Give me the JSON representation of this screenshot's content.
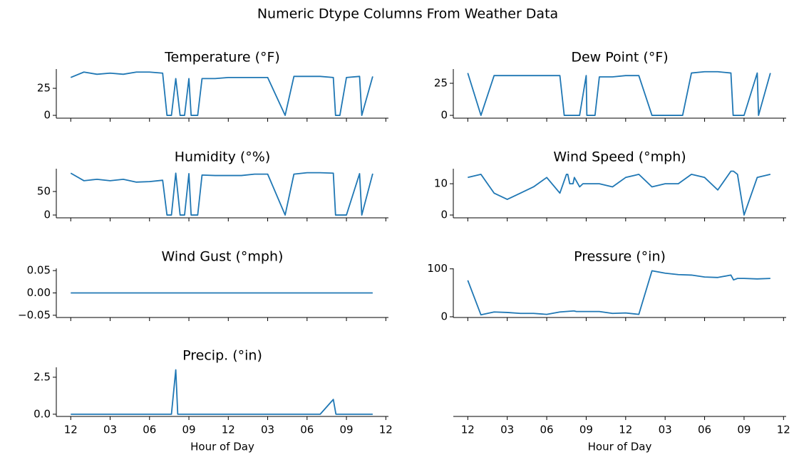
{
  "title": "Numeric Dtype Columns From Weather Data",
  "chart_data": [
    {
      "type": "line",
      "title": "Temperature (°F)",
      "color": "#1f77b4",
      "show_xticklabels": false,
      "x": [
        0,
        1,
        2,
        3,
        4,
        5,
        6,
        7,
        7.33,
        7.67,
        8,
        8.33,
        8.67,
        9,
        9.17,
        9.67,
        10,
        11,
        12,
        13,
        14,
        15,
        16.33,
        17,
        18,
        19,
        20,
        20.17,
        20.5,
        21,
        22,
        22.17,
        23
      ],
      "values": [
        35,
        40,
        38,
        39,
        38,
        40,
        40,
        39,
        0,
        0,
        34,
        0,
        0,
        34,
        0,
        0,
        34,
        34,
        35,
        35,
        35,
        35,
        0,
        36,
        36,
        36,
        35,
        0,
        0,
        35,
        36,
        0,
        36
      ],
      "xlim": [
        -1.1,
        24.2
      ],
      "xticks": [
        {
          "value": 0,
          "label": "12"
        },
        {
          "value": 3,
          "label": "03"
        },
        {
          "value": 6,
          "label": "06"
        },
        {
          "value": 9,
          "label": "09"
        },
        {
          "value": 12,
          "label": "12"
        },
        {
          "value": 15,
          "label": "03"
        },
        {
          "value": 18,
          "label": "06"
        },
        {
          "value": 21,
          "label": "09"
        },
        {
          "value": 24,
          "label": "12"
        }
      ],
      "ylim": [
        -2.6,
        42.8
      ],
      "yticks": [
        0,
        25
      ]
    },
    {
      "type": "line",
      "title": "Dew Point (°F)",
      "color": "#1f77b4",
      "show_xticklabels": false,
      "x": [
        0,
        1,
        2,
        3,
        4,
        5,
        6,
        7,
        7.33,
        8.5,
        9,
        9.05,
        9.67,
        10,
        11,
        12,
        13,
        14,
        15,
        16.33,
        17,
        18,
        19,
        20,
        20.17,
        21,
        22,
        22.1,
        23
      ],
      "values": [
        33,
        0,
        31,
        31,
        31,
        31,
        31,
        31,
        0,
        0,
        31,
        0,
        0,
        30,
        30,
        31,
        31,
        0,
        0,
        0,
        33,
        34,
        34,
        33,
        0,
        0,
        33,
        0,
        33
      ],
      "xlim": [
        -1.1,
        24.2
      ],
      "xticks": [
        {
          "value": 0,
          "label": "12"
        },
        {
          "value": 3,
          "label": "03"
        },
        {
          "value": 6,
          "label": "06"
        },
        {
          "value": 9,
          "label": "09"
        },
        {
          "value": 12,
          "label": "12"
        },
        {
          "value": 15,
          "label": "03"
        },
        {
          "value": 18,
          "label": "06"
        },
        {
          "value": 21,
          "label": "09"
        },
        {
          "value": 24,
          "label": "12"
        }
      ],
      "ylim": [
        -2.2,
        36.1
      ],
      "yticks": [
        0,
        25
      ]
    },
    {
      "type": "line",
      "title": "Humidity (°%)",
      "color": "#1f77b4",
      "show_xticklabels": false,
      "x": [
        0,
        1,
        2,
        3,
        4,
        5,
        6,
        7,
        7.33,
        7.67,
        8,
        8.33,
        8.67,
        9,
        9.17,
        9.67,
        10,
        11,
        12,
        13,
        14,
        15,
        16.33,
        17,
        18,
        19,
        20,
        20.17,
        20.5,
        21,
        22,
        22.17,
        23
      ],
      "values": [
        89,
        73,
        76,
        73,
        76,
        70,
        71,
        74,
        0,
        0,
        89,
        0,
        0,
        88,
        0,
        0,
        85,
        84,
        84,
        84,
        87,
        87,
        0,
        87,
        90,
        90,
        89,
        0,
        0,
        0,
        88,
        0,
        88
      ],
      "xlim": [
        -1.1,
        24.2
      ],
      "xticks": [
        {
          "value": 0,
          "label": "12"
        },
        {
          "value": 3,
          "label": "03"
        },
        {
          "value": 6,
          "label": "06"
        },
        {
          "value": 9,
          "label": "09"
        },
        {
          "value": 12,
          "label": "12"
        },
        {
          "value": 15,
          "label": "03"
        },
        {
          "value": 18,
          "label": "06"
        },
        {
          "value": 21,
          "label": "09"
        },
        {
          "value": 24,
          "label": "12"
        }
      ],
      "ylim": [
        -6,
        98.5
      ],
      "yticks": [
        0,
        50
      ]
    },
    {
      "type": "line",
      "title": "Wind Speed (°mph)",
      "color": "#1f77b4",
      "show_xticklabels": false,
      "x": [
        0,
        1,
        2,
        3,
        4,
        5,
        6,
        7,
        7.5,
        7.6,
        7.75,
        8,
        8.1,
        8.5,
        8.75,
        9,
        10,
        11,
        12,
        13,
        14,
        15,
        16,
        17,
        18,
        19,
        20,
        20.2,
        20.5,
        21,
        22,
        23
      ],
      "values": [
        12,
        13,
        7,
        5,
        7,
        9,
        12,
        7,
        13,
        13,
        10,
        10,
        12,
        9,
        10,
        10,
        10,
        9,
        12,
        13,
        9,
        10,
        10,
        13,
        12,
        8,
        14,
        14,
        13,
        0,
        12,
        13
      ],
      "xlim": [
        -1.1,
        24.2
      ],
      "xticks": [
        {
          "value": 0,
          "label": "12"
        },
        {
          "value": 3,
          "label": "03"
        },
        {
          "value": 6,
          "label": "06"
        },
        {
          "value": 9,
          "label": "09"
        },
        {
          "value": 12,
          "label": "12"
        },
        {
          "value": 15,
          "label": "03"
        },
        {
          "value": 18,
          "label": "06"
        },
        {
          "value": 21,
          "label": "09"
        },
        {
          "value": 24,
          "label": "12"
        }
      ],
      "ylim": [
        -0.9,
        14.8
      ],
      "yticks": [
        0,
        10
      ]
    },
    {
      "type": "line",
      "title": "Wind Gust (°mph)",
      "color": "#1f77b4",
      "show_xticklabels": false,
      "x": [
        0,
        23
      ],
      "values": [
        0,
        0
      ],
      "xlim": [
        -1.1,
        24.2
      ],
      "xticks": [
        {
          "value": 0,
          "label": "12"
        },
        {
          "value": 3,
          "label": "03"
        },
        {
          "value": 6,
          "label": "06"
        },
        {
          "value": 9,
          "label": "09"
        },
        {
          "value": 12,
          "label": "12"
        },
        {
          "value": 15,
          "label": "03"
        },
        {
          "value": 18,
          "label": "06"
        },
        {
          "value": 21,
          "label": "09"
        },
        {
          "value": 24,
          "label": "12"
        }
      ],
      "ylim": [
        -0.055,
        0.055
      ],
      "yticks": [
        {
          "value": -0.05,
          "label": "−0.05"
        },
        {
          "value": 0,
          "label": "0.00"
        },
        {
          "value": 0.05,
          "label": "0.05"
        }
      ]
    },
    {
      "type": "line",
      "title": "Pressure (°in)",
      "color": "#1f77b4",
      "show_xticklabels": false,
      "x": [
        0,
        1,
        2,
        3,
        4,
        5,
        6,
        7,
        8,
        8.1,
        8.25,
        8.5,
        9,
        10,
        11,
        12,
        13,
        14,
        15,
        16,
        17,
        18,
        19,
        20,
        20.2,
        20.5,
        21,
        22,
        23
      ],
      "values": [
        76,
        4,
        10,
        9,
        7,
        7,
        5,
        10,
        12,
        12,
        11,
        11,
        11,
        11,
        7,
        8,
        5,
        96,
        91,
        88,
        87,
        83,
        82,
        87,
        77,
        80,
        80,
        79,
        80
      ],
      "xlim": [
        -1.1,
        24.2
      ],
      "xticks": [
        {
          "value": 0,
          "label": "12"
        },
        {
          "value": 3,
          "label": "03"
        },
        {
          "value": 6,
          "label": "06"
        },
        {
          "value": 9,
          "label": "09"
        },
        {
          "value": 12,
          "label": "12"
        },
        {
          "value": 15,
          "label": "03"
        },
        {
          "value": 18,
          "label": "06"
        },
        {
          "value": 21,
          "label": "09"
        },
        {
          "value": 24,
          "label": "12"
        }
      ],
      "ylim": [
        -1.5,
        101
      ],
      "yticks": [
        0,
        100
      ]
    },
    {
      "type": "line",
      "title": "Precip. (°in)",
      "color": "#1f77b4",
      "show_xticklabels": true,
      "xlabel": "Hour of Day",
      "x": [
        0,
        7.67,
        8,
        8.15,
        19,
        20,
        20.2,
        23
      ],
      "values": [
        0,
        0,
        3,
        0,
        0,
        1,
        0,
        0
      ],
      "xlim": [
        -1.1,
        24.2
      ],
      "xticks": [
        {
          "value": 0,
          "label": "12"
        },
        {
          "value": 3,
          "label": "03"
        },
        {
          "value": 6,
          "label": "06"
        },
        {
          "value": 9,
          "label": "09"
        },
        {
          "value": 12,
          "label": "12"
        },
        {
          "value": 15,
          "label": "03"
        },
        {
          "value": 18,
          "label": "06"
        },
        {
          "value": 21,
          "label": "09"
        },
        {
          "value": 24,
          "label": "12"
        }
      ],
      "ylim": [
        -0.15,
        3.17
      ],
      "yticks": [
        {
          "value": 0,
          "label": "0.0"
        },
        2.5
      ]
    },
    {
      "type": "line",
      "show_xticklabels": true,
      "xlabel": "Hour of Day",
      "xlim": [
        -1.1,
        24.2
      ],
      "xticks": [
        {
          "value": 0,
          "label": "12"
        },
        {
          "value": 3,
          "label": "03"
        },
        {
          "value": 6,
          "label": "06"
        },
        {
          "value": 9,
          "label": "09"
        },
        {
          "value": 12,
          "label": "12"
        },
        {
          "value": 15,
          "label": "03"
        },
        {
          "value": 18,
          "label": "06"
        },
        {
          "value": 21,
          "label": "09"
        },
        {
          "value": 24,
          "label": "12"
        }
      ]
    }
  ]
}
